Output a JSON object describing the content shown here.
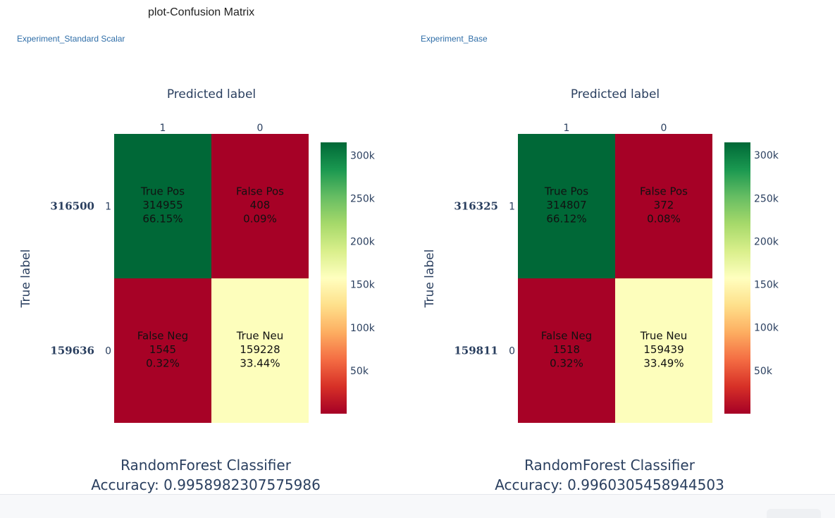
{
  "page": {
    "title": "plot-Confusion Matrix"
  },
  "colorscale": [
    "#a50026",
    "#d73027",
    "#f46d43",
    "#fdae61",
    "#fee08b",
    "#ffffbf",
    "#d9ef8b",
    "#a6d96a",
    "#66bd63",
    "#1a9850",
    "#006837"
  ],
  "chart_data": [
    {
      "type": "heatmap",
      "panel_label": "Experiment_Standard Scalar",
      "xlabel": "Predicted label",
      "ylabel": "True label",
      "x_categories": [
        "1",
        "0"
      ],
      "y_categories": [
        "1",
        "0"
      ],
      "row_totals": [
        "316500",
        "159636"
      ],
      "values": [
        [
          314955,
          408
        ],
        [
          1545,
          159228
        ]
      ],
      "cell_text": [
        [
          [
            "True Pos",
            "314955",
            "66.15%"
          ],
          [
            "False Pos",
            "408",
            "0.09%"
          ]
        ],
        [
          [
            "False Neg",
            "1545",
            "0.32%"
          ],
          [
            "True Neu",
            "159228",
            "33.44%"
          ]
        ]
      ],
      "colorbar_range": [
        0,
        314955
      ],
      "colorbar_ticks": [
        50000,
        100000,
        150000,
        200000,
        250000,
        300000
      ],
      "colorbar_tick_labels": [
        "50k",
        "100k",
        "150k",
        "200k",
        "250k",
        "300k"
      ],
      "title_lines": [
        "RandomForest Classifier",
        "Accuracy: 0.9958982307575986"
      ]
    },
    {
      "type": "heatmap",
      "panel_label": "Experiment_Base",
      "xlabel": "Predicted label",
      "ylabel": "True label",
      "x_categories": [
        "1",
        "0"
      ],
      "y_categories": [
        "1",
        "0"
      ],
      "row_totals": [
        "316325",
        "159811"
      ],
      "values": [
        [
          314807,
          372
        ],
        [
          1518,
          159439
        ]
      ],
      "cell_text": [
        [
          [
            "True Pos",
            "314807",
            "66.12%"
          ],
          [
            "False Pos",
            "372",
            "0.08%"
          ]
        ],
        [
          [
            "False Neg",
            "1518",
            "0.32%"
          ],
          [
            "True Neu",
            "159439",
            "33.49%"
          ]
        ]
      ],
      "colorbar_range": [
        0,
        314807
      ],
      "colorbar_ticks": [
        50000,
        100000,
        150000,
        200000,
        250000,
        300000
      ],
      "colorbar_tick_labels": [
        "50k",
        "100k",
        "150k",
        "200k",
        "250k",
        "300k"
      ],
      "title_lines": [
        "RandomForest Classifier",
        "Accuracy: 0.9960305458944503"
      ]
    }
  ]
}
